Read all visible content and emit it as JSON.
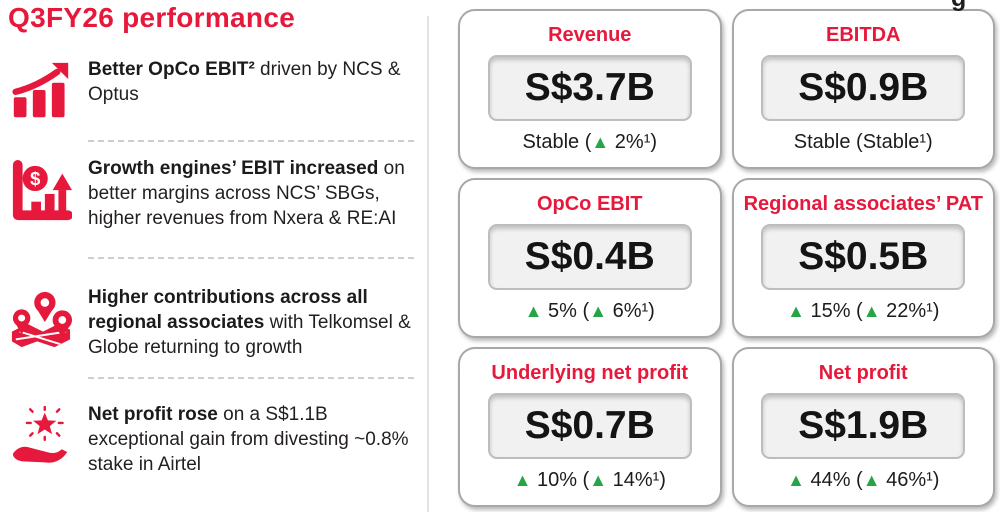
{
  "page": {
    "title": "Q3FY26 performance",
    "cropped_fragment": "g"
  },
  "highlights": [
    {
      "icon": "bar-chart-rising-icon",
      "bold": "Better OpCo EBIT²",
      "rest": " driven by NCS & Optus"
    },
    {
      "icon": "dollar-growth-chart-icon",
      "bold": "Growth engines’ EBIT increased",
      "rest": " on better margins across NCS’ SBGs, higher revenues from Nxera & RE:AI"
    },
    {
      "icon": "map-pins-icon",
      "bold": "Higher contributions across all regional associates",
      "rest": " with Telkomsel & Globe returning to growth"
    },
    {
      "icon": "hand-star-icon",
      "bold": "Net profit rose",
      "rest": " on a S$1.1B exceptional gain from divesting ~0.8% stake in Airtel"
    }
  ],
  "metrics": [
    {
      "label": "Revenue",
      "value": "S$3.7B",
      "change": "Stable (▲ 2%¹)"
    },
    {
      "label": "EBITDA",
      "value": "S$0.9B",
      "change": "Stable (Stable¹)"
    },
    {
      "label": "OpCo EBIT",
      "value": "S$0.4B",
      "change": "▲ 5% (▲ 6%¹)"
    },
    {
      "label": "Regional associates’ PAT",
      "value": "S$0.5B",
      "change": "▲ 15% (▲ 22%¹)"
    },
    {
      "label": "Underlying net profit",
      "value": "S$0.7B",
      "change": "▲ 10% (▲ 14%¹)"
    },
    {
      "label": "Net profit",
      "value": "S$1.9B",
      "change": "▲ 44% (▲ 46%¹)"
    }
  ],
  "colors": {
    "brand_red": "#e6193c",
    "up_green": "#27a348",
    "text_dark": "#231f20"
  }
}
